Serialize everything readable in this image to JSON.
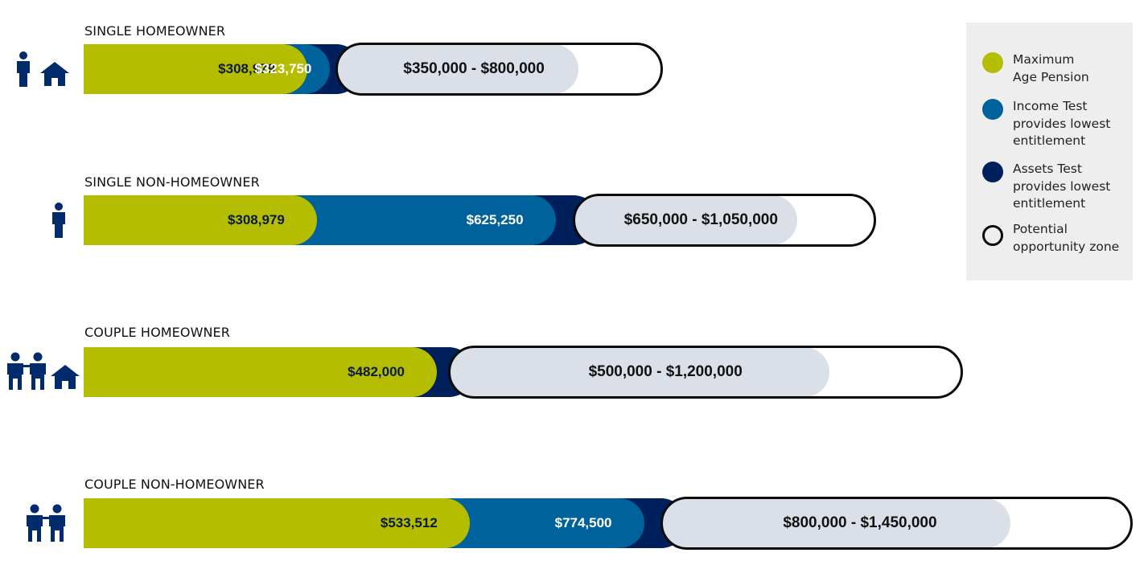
{
  "colors": {
    "max_age_pension": "#b5bd00",
    "income_test": "#00629b",
    "assets_test": "#00205b",
    "opportunity_fill": "#dbe0e8",
    "opportunity_outline": "#0b0b0b",
    "icon": "#002c6e"
  },
  "legend": {
    "items": [
      {
        "label_line1": "Maximum",
        "label_line2": "Age Pension",
        "label_line3": "",
        "color": "#b5bd00",
        "style": "filled"
      },
      {
        "label_line1": "Income Test",
        "label_line2": "provides lowest",
        "label_line3": "entitlement",
        "color": "#00629b",
        "style": "filled"
      },
      {
        "label_line1": "Assets Test",
        "label_line2": "provides lowest",
        "label_line3": "entitlement",
        "color": "#00205b",
        "style": "filled"
      },
      {
        "label_line1": "Potential",
        "label_line2": "opportunity zone",
        "label_line3": "",
        "color": "#0b0b0b",
        "style": "outline"
      }
    ]
  },
  "chart_data": {
    "type": "bar",
    "orientation": "horizontal",
    "stacked": true,
    "grid": false,
    "legend_position": "top-right",
    "x_unit": "$",
    "series": [
      {
        "name": "Maximum Age Pension",
        "color": "#b5bd00"
      },
      {
        "name": "Income Test provides lowest entitlement",
        "color": "#00629b"
      },
      {
        "name": "Assets Test provides lowest entitlement",
        "color": "#00205b"
      },
      {
        "name": "Potential opportunity zone",
        "color": "#dbe0e8"
      }
    ],
    "rows": [
      {
        "title": "SINGLE HOMEOWNER",
        "icons": [
          "person-icon",
          "house-icon"
        ],
        "max_pension_to": 308979,
        "max_pension_label": "$308,979",
        "income_test_to": null,
        "income_test_label": "",
        "assets_test_to": 323750,
        "assets_test_label": "$323,750",
        "zone_from": 350000,
        "zone_to": 800000,
        "zone_label": "$350,000 - $800,000"
      },
      {
        "title": "SINGLE NON-HOMEOWNER",
        "icons": [
          "person-icon"
        ],
        "max_pension_to": 308979,
        "max_pension_label": "$308,979",
        "income_test_to": 625250,
        "income_test_label": "$625,250",
        "assets_test_to": null,
        "assets_test_label": "",
        "zone_from": 650000,
        "zone_to": 1050000,
        "zone_label": "$650,000 - $1,050,000"
      },
      {
        "title": "COUPLE HOMEOWNER",
        "icons": [
          "couple-icon",
          "house-icon"
        ],
        "max_pension_to": 482000,
        "max_pension_label": "$482,000",
        "income_test_to": null,
        "income_test_label": "",
        "assets_test_to": null,
        "assets_test_label": "",
        "zone_from": 500000,
        "zone_to": 1200000,
        "zone_label": "$500,000 - $1,200,000"
      },
      {
        "title": "COUPLE NON-HOMEOWNER",
        "icons": [
          "couple-icon"
        ],
        "max_pension_to": 533512,
        "max_pension_label": "$533,512",
        "income_test_to": 774500,
        "income_test_label": "$774,500",
        "assets_test_to": null,
        "assets_test_label": "",
        "zone_from": 800000,
        "zone_to": 1450000,
        "zone_label": "$800,000 - $1,450,000"
      }
    ]
  }
}
